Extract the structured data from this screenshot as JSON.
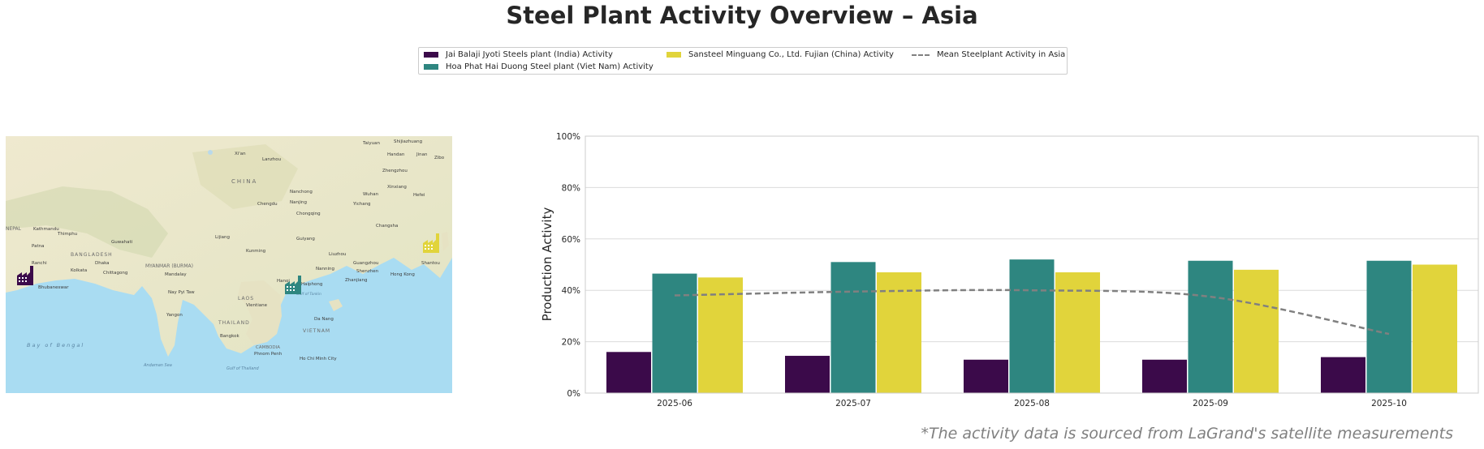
{
  "page": {
    "title": "Steel Plant Activity Overview – Asia",
    "source_note": "*The activity data is sourced from LaGrand's satellite measurements"
  },
  "legend": {
    "items": [
      {
        "label": "Jai Balaji Jyoti Steels plant (India) Activity",
        "color": "#3b0a4a"
      },
      {
        "label": "Hoa Phat Hai Duong Steel plant (Viet Nam) Activity",
        "color": "#2e8680"
      },
      {
        "label": "Sansteel Minguang Co., Ltd. Fujian (China) Activity",
        "color": "#e1d43b"
      },
      {
        "label": "Mean Steelplant Activity in Asia",
        "color": "#808080"
      }
    ]
  },
  "map": {
    "plant_icon_colors": [
      "#3b0a4a",
      "#2e8680",
      "#e1d43b"
    ],
    "labels": {
      "country": [
        "CHINA",
        "BANGLADESH",
        "MYANMAR (BURMA)",
        "LAOS",
        "THAILAND",
        "VIETNAM",
        "CAMBODIA",
        "NEPAL"
      ],
      "cities": [
        "Taiyuan",
        "Shijiazhuang",
        "Handan",
        "Jinan",
        "Zibo",
        "Xi'an",
        "Lanzhou",
        "Zhengzhou",
        "Xinxiang",
        "Hefei",
        "Nanjing",
        "Wuhan",
        "Changsha",
        "Chengdu",
        "Nanchong",
        "Chongqing",
        "Yichang",
        "Guiyang",
        "Kunming",
        "Lijiang",
        "Liuzhou",
        "Guangzhou",
        "Shenzhen",
        "Hong Kong",
        "Shantou",
        "Nanning",
        "Zhanjiang",
        "Hanoi",
        "Haiphong",
        "Vientiane",
        "Bangkok",
        "Da Nang",
        "Phnom Penh",
        "Ho Chi Minh City",
        "Yangon",
        "Mandalay",
        "Nay Pyi Taw",
        "Dhaka",
        "Kolkata",
        "Chittagong",
        "Patna",
        "Kathmandu",
        "Guwahati",
        "Bhubaneswar",
        "Ranchi",
        "Thimphu"
      ],
      "water": [
        "Bay of Bengal",
        "Andaman Sea",
        "Gulf of Thailand",
        "Gulf of Tonkin"
      ]
    }
  },
  "chart_data": {
    "type": "bar",
    "categories": [
      "2025-06",
      "2025-07",
      "2025-08",
      "2025-09",
      "2025-10"
    ],
    "series": [
      {
        "name": "Jai Balaji Jyoti Steels plant (India) Activity",
        "color": "#3b0a4a",
        "values": [
          16,
          14.5,
          13,
          13,
          14
        ]
      },
      {
        "name": "Hoa Phat Hai Duong Steel plant (Viet Nam) Activity",
        "color": "#2e8680",
        "values": [
          46.5,
          51,
          52,
          51.5,
          51.5
        ]
      },
      {
        "name": "Sansteel Minguang Co., Ltd. Fujian (China) Activity",
        "color": "#e1d43b",
        "values": [
          45,
          47,
          47,
          48,
          50
        ]
      }
    ],
    "line_series": {
      "name": "Mean Steelplant Activity in Asia",
      "color": "#808080",
      "style": "dashed",
      "values": [
        38,
        39.5,
        40,
        37.5,
        23
      ]
    },
    "ylabel": "Production Activity",
    "xlabel": "",
    "ylim": [
      0,
      100
    ],
    "yticks": [
      "0%",
      "20%",
      "40%",
      "60%",
      "80%",
      "100%"
    ],
    "grid": "horizontal"
  }
}
